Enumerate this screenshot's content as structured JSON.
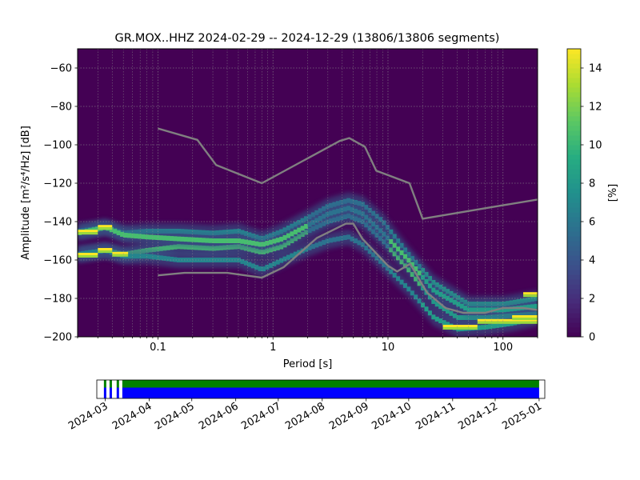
{
  "title": "GR.MOX..HHZ   2024-02-29 -- 2024-12-29  (13806/13806 segments)",
  "chart_data": [
    {
      "type": "heatmap",
      "title": "GR.MOX..HHZ   2024-02-29 -- 2024-12-29  (13806/13806 segments)",
      "xlabel": "Period [s]",
      "ylabel": "Amplitude [m²/s⁴/Hz] [dB]",
      "x_scale": "log",
      "xlim": [
        0.02,
        200
      ],
      "ylim": [
        -200,
        -50
      ],
      "x_ticks": [
        0.1,
        1,
        10,
        100
      ],
      "x_tick_labels": [
        "0.1",
        "1",
        "10",
        "100"
      ],
      "y_ticks": [
        -200,
        -180,
        -160,
        -140,
        -120,
        -100,
        -80,
        -60
      ],
      "y_tick_labels": [
        "−200",
        "−180",
        "−160",
        "−140",
        "−120",
        "−100",
        "−80",
        "−60"
      ],
      "grid": true,
      "background_color": "#440154",
      "colorbar": {
        "label": "[%]",
        "range": [
          0,
          15
        ],
        "ticks": [
          0,
          2,
          4,
          6,
          8,
          10,
          12,
          14
        ],
        "colormap": "viridis"
      },
      "density_ridges": [
        {
          "name": "",
          "points": [
            [
              0.02,
              -145
            ],
            [
              0.035,
              -143
            ],
            [
              0.05,
              -146
            ],
            [
              0.08,
              -145
            ],
            [
              0.15,
              -145
            ],
            [
              0.3,
              -146
            ],
            [
              0.5,
              -145
            ],
            [
              0.8,
              -149
            ],
            [
              1.2,
              -145
            ],
            [
              2,
              -138
            ],
            [
              3,
              -132
            ],
            [
              4.5,
              -129
            ],
            [
              6,
              -131
            ],
            [
              9,
              -140
            ],
            [
              15,
              -157
            ],
            [
              25,
              -172
            ],
            [
              50,
              -183
            ],
            [
              100,
              -183
            ],
            [
              200,
              -180
            ]
          ]
        },
        {
          "name": "",
          "points": [
            [
              0.02,
              -157
            ],
            [
              0.035,
              -155
            ],
            [
              0.05,
              -157
            ],
            [
              0.08,
              -155
            ],
            [
              0.15,
              -153
            ],
            [
              0.3,
              -154
            ],
            [
              0.5,
              -153
            ],
            [
              0.8,
              -156
            ],
            [
              1.2,
              -153
            ],
            [
              2,
              -145
            ],
            [
              3,
              -140
            ],
            [
              4.5,
              -137
            ],
            [
              6,
              -140
            ],
            [
              9,
              -150
            ],
            [
              15,
              -165
            ],
            [
              25,
              -182
            ],
            [
              40,
              -190
            ],
            [
              70,
              -190
            ],
            [
              200,
              -188
            ]
          ]
        },
        {
          "name": "",
          "points": [
            [
              0.02,
              -157
            ],
            [
              0.035,
              -155
            ],
            [
              0.05,
              -158
            ],
            [
              0.08,
              -158
            ],
            [
              0.15,
              -160
            ],
            [
              0.3,
              -160
            ],
            [
              0.5,
              -160
            ],
            [
              0.8,
              -165
            ],
            [
              1.2,
              -160
            ],
            [
              2,
              -154
            ],
            [
              3,
              -150
            ],
            [
              4.5,
              -148
            ],
            [
              6,
              -152
            ],
            [
              9,
              -162
            ],
            [
              15,
              -175
            ],
            [
              25,
              -190
            ],
            [
              40,
              -196
            ],
            [
              70,
              -195
            ],
            [
              120,
              -193
            ],
            [
              200,
              -190
            ]
          ]
        },
        {
          "name": "",
          "points": [
            [
              0.02,
              -146
            ],
            [
              0.035,
              -143
            ],
            [
              0.05,
              -147
            ],
            [
              0.08,
              -148
            ],
            [
              0.15,
              -149
            ],
            [
              0.3,
              -150
            ],
            [
              0.5,
              -150
            ],
            [
              0.8,
              -152
            ],
            [
              1.2,
              -149
            ],
            [
              2,
              -142
            ],
            [
              3,
              -136
            ],
            [
              4.5,
              -133
            ],
            [
              6,
              -136
            ],
            [
              9,
              -146
            ],
            [
              15,
              -160
            ],
            [
              25,
              -176
            ],
            [
              50,
              -186
            ],
            [
              100,
              -186
            ],
            [
              200,
              -184
            ]
          ]
        }
      ],
      "bright_segments": [
        {
          "x": [
            0.02,
            0.03
          ],
          "y": -145.5
        },
        {
          "x": [
            0.03,
            0.04
          ],
          "y": -143
        },
        {
          "x": [
            0.02,
            0.03
          ],
          "y": -157.5
        },
        {
          "x": [
            0.03,
            0.04
          ],
          "y": -155
        },
        {
          "x": [
            0.04,
            0.055
          ],
          "y": -157
        },
        {
          "x": [
            30,
            60
          ],
          "y": -195
        },
        {
          "x": [
            60,
            200
          ],
          "y": -192
        },
        {
          "x": [
            120,
            200
          ],
          "y": -190
        },
        {
          "x": [
            150,
            200
          ],
          "y": -178
        }
      ],
      "noise_models": [
        {
          "name": "",
          "points": [
            [
              0.1,
              -91.5
            ],
            [
              0.22,
              -97.4
            ],
            [
              0.32,
              -110.5
            ],
            [
              0.8,
              -120
            ],
            [
              3.8,
              -98
            ],
            [
              4.6,
              -96.5
            ],
            [
              6.3,
              -101
            ],
            [
              7.9,
              -113.5
            ],
            [
              15.4,
              -120
            ],
            [
              20,
              -138.5
            ],
            [
              100,
              -131.5
            ],
            [
              200,
              -128.5
            ]
          ]
        },
        {
          "name": "",
          "points": [
            [
              0.1,
              -168
            ],
            [
              0.17,
              -166.7
            ],
            [
              0.4,
              -166.7
            ],
            [
              0.8,
              -169.2
            ],
            [
              1.24,
              -163.7
            ],
            [
              2.4,
              -148.6
            ],
            [
              4.3,
              -141.1
            ],
            [
              5,
              -141.1
            ],
            [
              6,
              -149
            ],
            [
              10,
              -163
            ],
            [
              12,
              -166
            ],
            [
              15.6,
              -162
            ],
            [
              21.9,
              -177
            ],
            [
              31.6,
              -185
            ],
            [
              45,
              -187.5
            ],
            [
              70,
              -187.5
            ],
            [
              100,
              -185
            ],
            [
              150,
              -185
            ],
            [
              200,
              -186
            ]
          ]
        }
      ]
    },
    {
      "type": "timeline",
      "x_tick_labels": [
        "2024-03",
        "2024-04",
        "2024-05",
        "2024-06",
        "2024-07",
        "2024-08",
        "2024-09",
        "2024-10",
        "2024-11",
        "2024-12",
        "2025-01"
      ],
      "x_ticks": [
        "2024-03-01",
        "2024-04-01",
        "2024-05-01",
        "2024-06-01",
        "2024-07-01",
        "2024-08-01",
        "2024-09-01",
        "2024-10-01",
        "2024-11-01",
        "2024-12-01",
        "2025-01-01"
      ],
      "xlim": [
        "2024-02-24",
        "2025-01-05"
      ],
      "series": [
        {
          "name": "",
          "color": "#008000",
          "intervals": [
            [
              "2024-02-29",
              "2024-03-01"
            ],
            [
              "2024-03-04",
              "2024-03-05"
            ],
            [
              "2024-03-09",
              "2024-03-10"
            ],
            [
              "2024-03-13",
              "2025-01-01"
            ]
          ]
        },
        {
          "name": "",
          "color": "#0000ff",
          "intervals": [
            [
              "2024-02-29",
              "2024-03-01"
            ],
            [
              "2024-03-04",
              "2024-03-05"
            ],
            [
              "2024-03-09",
              "2024-03-10"
            ],
            [
              "2024-03-13",
              "2025-01-01"
            ]
          ]
        }
      ]
    }
  ]
}
